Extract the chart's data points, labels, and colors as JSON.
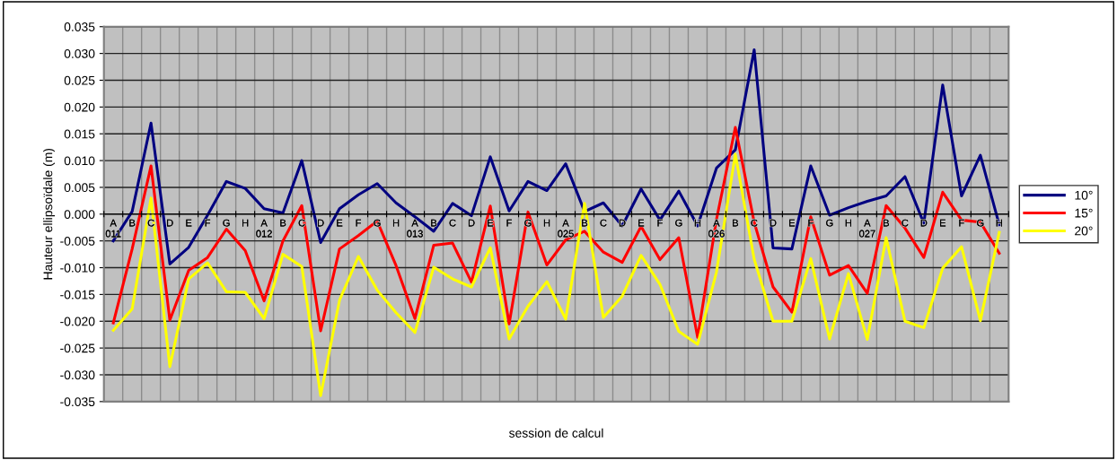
{
  "chart_data": {
    "type": "line",
    "xlabel": "session de calcul",
    "ylabel": "Hauteur ellipsoïdale (m)",
    "categories": [
      "A\n011",
      "B",
      "C",
      "D",
      "E",
      "F",
      "G",
      "H",
      "A\n012",
      "B",
      "C",
      "D",
      "E",
      "F",
      "G",
      "H",
      "A\n013",
      "B",
      "C",
      "D",
      "E",
      "F",
      "G",
      "H",
      "A\n025",
      "B",
      "C",
      "D",
      "E",
      "F",
      "G",
      "H",
      "A\n026",
      "B",
      "C",
      "D",
      "E",
      "F",
      "G",
      "H",
      "A\n027",
      "B",
      "C",
      "D",
      "E",
      "F",
      "G",
      "H"
    ],
    "series": [
      {
        "name": "10°",
        "color": "#000080",
        "values": [
          -0.005,
          0.0005,
          0.017,
          -0.0093,
          -0.0062,
          -0.0002,
          0.0061,
          0.0048,
          0.001,
          0.0002,
          0.01,
          -0.0053,
          0.001,
          0.0036,
          0.0057,
          0.0021,
          -0.0005,
          -0.0032,
          0.002,
          -0.0003,
          0.0107,
          0.0006,
          0.0061,
          0.0044,
          0.0094,
          0.0005,
          0.0021,
          -0.0022,
          0.0047,
          -0.0011,
          0.0043,
          -0.0022,
          0.0086,
          0.012,
          0.0307,
          -0.0063,
          -0.0065,
          0.009,
          -0.0002,
          0.0012,
          0.0024,
          0.0034,
          0.007,
          -0.0017,
          0.0241,
          0.0034,
          0.011,
          -0.002
        ]
      },
      {
        "name": "15°",
        "color": "#ff0000",
        "values": [
          -0.0203,
          -0.0065,
          0.009,
          -0.0198,
          -0.0105,
          -0.0081,
          -0.0028,
          -0.0068,
          -0.0162,
          -0.005,
          0.0016,
          -0.0218,
          -0.0065,
          -0.004,
          -0.0013,
          -0.0096,
          -0.0195,
          -0.0058,
          -0.0054,
          -0.0127,
          0.0015,
          -0.0205,
          0.0004,
          -0.0095,
          -0.0048,
          -0.0032,
          -0.0071,
          -0.009,
          -0.0023,
          -0.0085,
          -0.0044,
          -0.023,
          -0.001,
          0.0162,
          -0.0015,
          -0.0136,
          -0.0183,
          -0.0005,
          -0.0114,
          -0.0096,
          -0.0148,
          0.0016,
          -0.0026,
          -0.0081,
          0.0041,
          -0.0011,
          -0.0015,
          -0.0073
        ]
      },
      {
        "name": "20°",
        "color": "#ffff00",
        "values": [
          -0.0217,
          -0.0177,
          0.003,
          -0.0285,
          -0.0121,
          -0.0091,
          -0.0145,
          -0.0146,
          -0.0195,
          -0.0075,
          -0.0098,
          -0.0339,
          -0.0161,
          -0.0079,
          -0.0142,
          -0.0184,
          -0.0221,
          -0.0099,
          -0.0121,
          -0.0136,
          -0.0063,
          -0.0233,
          -0.0172,
          -0.0126,
          -0.0196,
          0.002,
          -0.0193,
          -0.0153,
          -0.0077,
          -0.0131,
          -0.0219,
          -0.0243,
          -0.0108,
          0.0112,
          -0.0084,
          -0.02,
          -0.02,
          -0.0083,
          -0.0233,
          -0.0111,
          -0.0234,
          -0.0044,
          -0.02,
          -0.0212,
          -0.0101,
          -0.0061,
          -0.0199,
          -0.0034
        ]
      }
    ],
    "ylim": [
      -0.035,
      0.035
    ],
    "yticks": [
      {
        "value": -0.035,
        "label": "-0.035"
      },
      {
        "value": -0.03,
        "label": "-0.030"
      },
      {
        "value": -0.025,
        "label": "-0.025"
      },
      {
        "value": -0.02,
        "label": "-0.020"
      },
      {
        "value": -0.015,
        "label": "-0.015"
      },
      {
        "value": -0.01,
        "label": "-0.010"
      },
      {
        "value": -0.005,
        "label": "-0.005"
      },
      {
        "value": 0,
        "label": "0.000"
      },
      {
        "value": 0.005,
        "label": "0.005"
      },
      {
        "value": 0.01,
        "label": "0.010"
      },
      {
        "value": 0.015,
        "label": "0.015"
      },
      {
        "value": 0.02,
        "label": "0.020"
      },
      {
        "value": 0.025,
        "label": "0.025"
      },
      {
        "value": 0.03,
        "label": "0.030"
      },
      {
        "value": 0.035,
        "label": "0.035"
      }
    ],
    "grid": true,
    "legend": "right",
    "marker": "none",
    "line_style": "solid"
  }
}
